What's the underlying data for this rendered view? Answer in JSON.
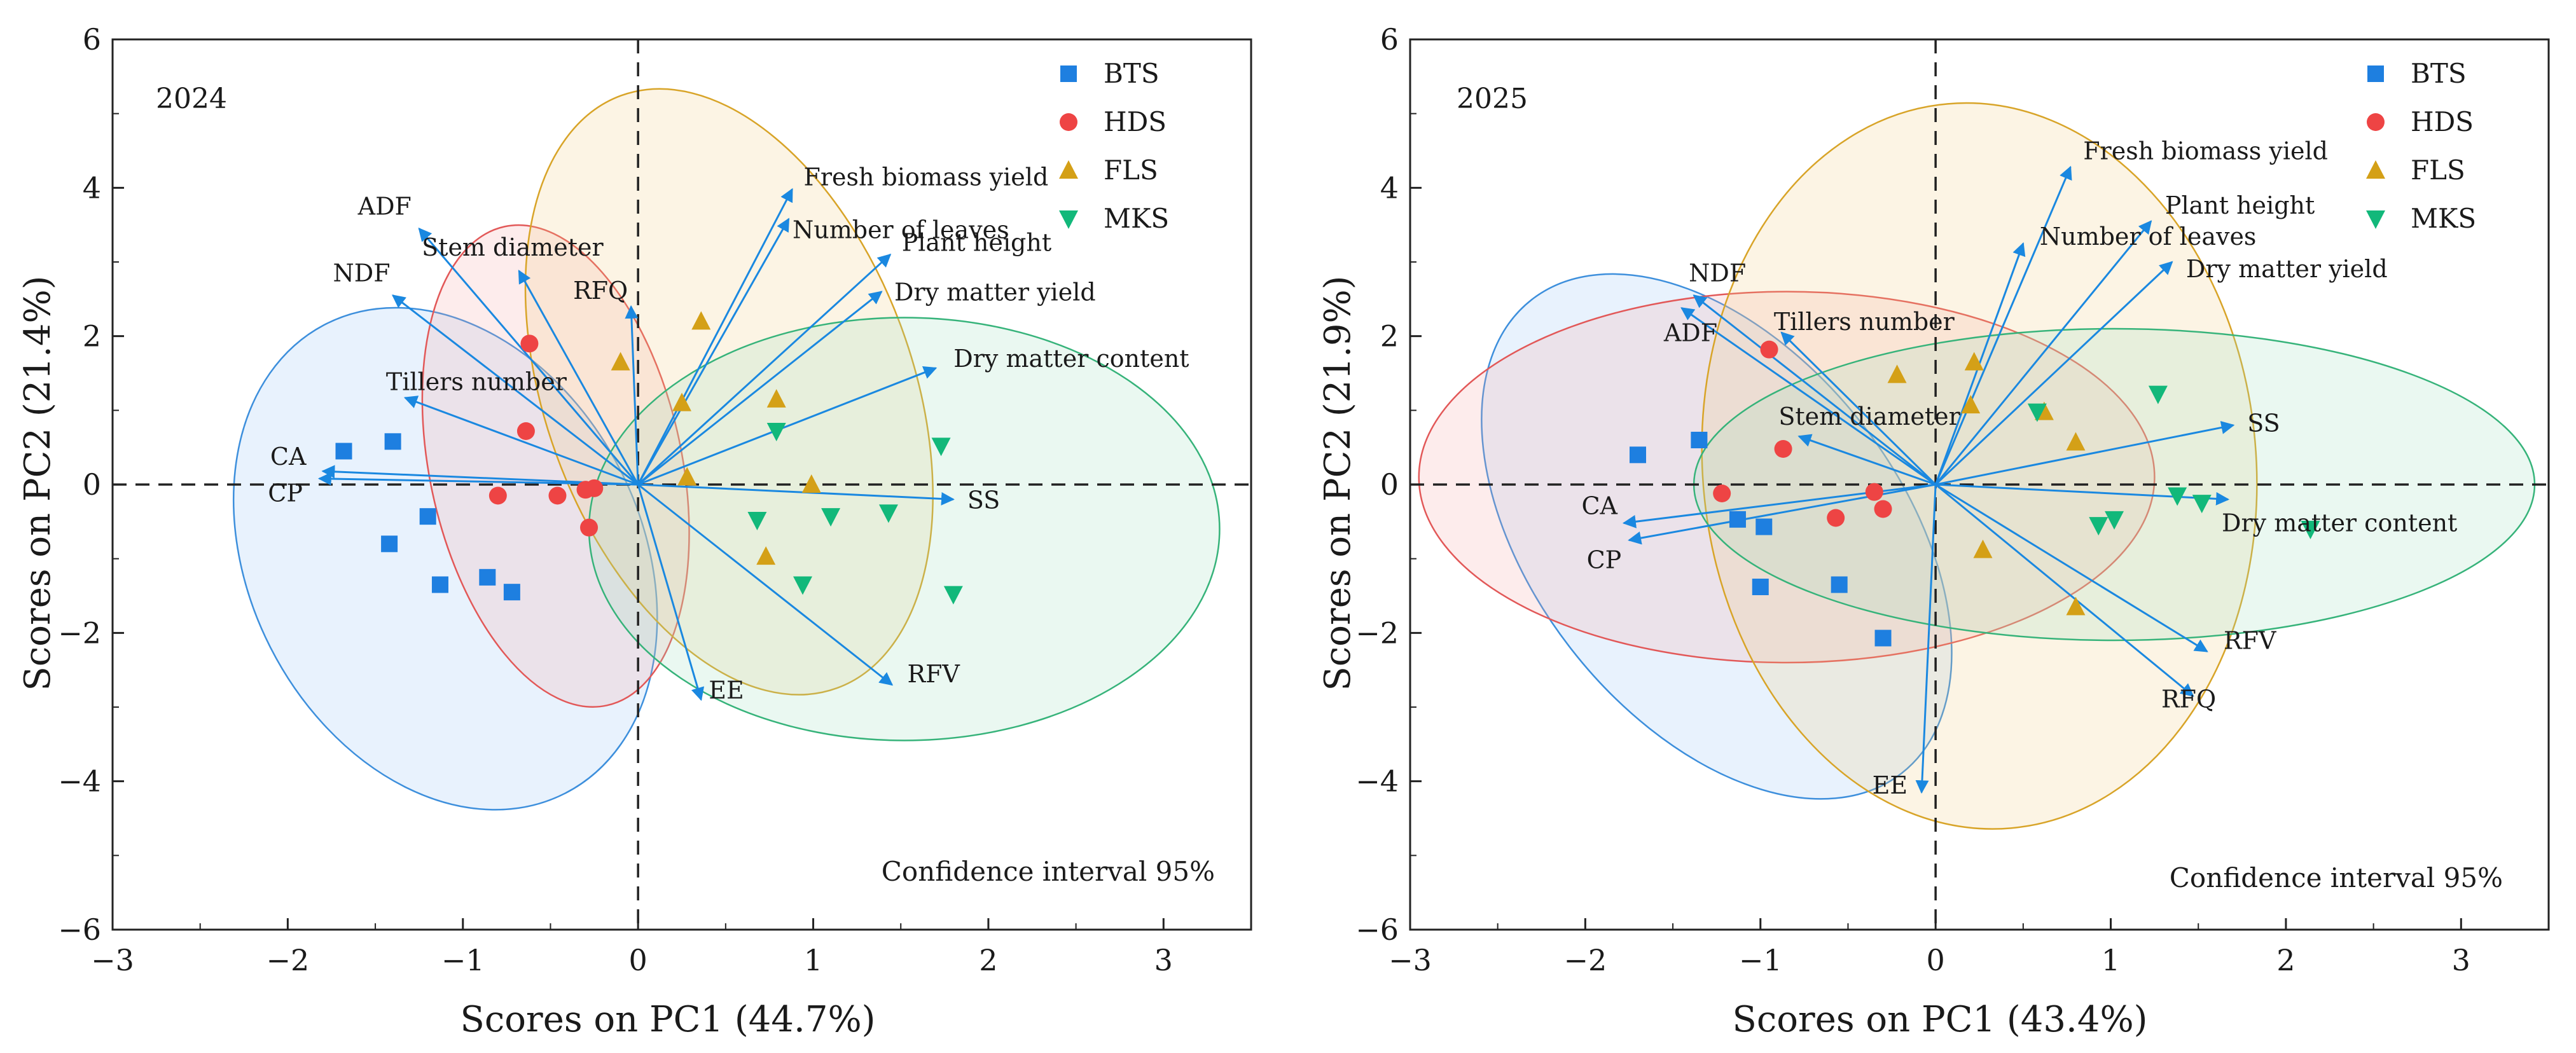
{
  "chart_data": [
    {
      "type": "scatter",
      "subtype": "pca-biplot",
      "year_label": "2024",
      "xlabel": "Scores on PC1 (44.7%)",
      "ylabel": "Scores on PC2 (21.4%)",
      "xlim": [
        -3,
        3.5
      ],
      "ylim": [
        -6,
        6
      ],
      "xticks": [
        "−3",
        "−2",
        "−1",
        "0",
        "1",
        "2",
        "3"
      ],
      "yticks": [
        "−6",
        "−4",
        "−2",
        "0",
        "2",
        "4",
        "6"
      ],
      "annotation": "Confidence interval 95%",
      "series": [
        {
          "name": "BTS",
          "marker": "square",
          "color": "#1e7fe0",
          "x": [
            -1.68,
            -1.4,
            -1.42,
            -1.2,
            -1.13,
            -0.86,
            -0.72
          ],
          "y": [
            0.45,
            0.58,
            -0.8,
            -0.43,
            -1.35,
            -1.25,
            -1.45
          ]
        },
        {
          "name": "HDS",
          "marker": "circle",
          "color": "#ee4444",
          "x": [
            -0.62,
            -0.64,
            -0.8,
            -0.46,
            -0.3,
            -0.25,
            -0.28
          ],
          "y": [
            1.9,
            0.72,
            -0.15,
            -0.15,
            -0.07,
            -0.05,
            -0.58
          ]
        },
        {
          "name": "FLS",
          "marker": "triangle",
          "color": "#d4a017",
          "x": [
            -0.1,
            0.36,
            0.25,
            0.79,
            0.28,
            0.99,
            0.73
          ],
          "y": [
            1.65,
            2.2,
            1.1,
            1.15,
            0.1,
            0.0,
            -0.97
          ]
        },
        {
          "name": "MKS",
          "marker": "triangle-down",
          "color": "#12b87a",
          "x": [
            0.79,
            1.73,
            0.68,
            1.1,
            1.43,
            0.94,
            1.8
          ],
          "y": [
            0.72,
            0.52,
            -0.48,
            -0.43,
            -0.38,
            -1.35,
            -1.48
          ]
        }
      ],
      "ellipses": [
        {
          "group": "BTS",
          "cx": -1.1,
          "cy": -1.0,
          "rx": 1.12,
          "ry": 3.55,
          "angle_deg": 27
        },
        {
          "group": "HDS",
          "cx": -0.47,
          "cy": 0.25,
          "rx": 0.72,
          "ry": 3.3,
          "angle_deg": 12
        },
        {
          "group": "FLS",
          "cx": 0.52,
          "cy": 1.25,
          "rx": 1.05,
          "ry": 4.25,
          "angle_deg": 20
        },
        {
          "group": "MKS",
          "cx": 1.52,
          "cy": -0.6,
          "rx": 1.8,
          "ry": 2.85,
          "angle_deg": 0
        }
      ],
      "loadings": [
        {
          "name": "ADF",
          "x": -1.25,
          "y": 3.45
        },
        {
          "name": "NDF",
          "x": -1.4,
          "y": 2.55
        },
        {
          "name": "Stem diameter",
          "x": -0.68,
          "y": 2.88
        },
        {
          "name": "RFQ",
          "x": -0.04,
          "y": 2.4
        },
        {
          "name": "Fresh biomass yield",
          "x": 0.88,
          "y": 3.98
        },
        {
          "name": "Number of leaves",
          "x": 0.86,
          "y": 3.58
        },
        {
          "name": "Plant height",
          "x": 1.44,
          "y": 3.1
        },
        {
          "name": "Dry matter yield",
          "x": 1.39,
          "y": 2.6
        },
        {
          "name": "Dry matter content",
          "x": 1.7,
          "y": 1.57
        },
        {
          "name": "Tillers number",
          "x": -1.33,
          "y": 1.17
        },
        {
          "name": "CA",
          "x": -1.8,
          "y": 0.18
        },
        {
          "name": "CP",
          "x": -1.82,
          "y": 0.08
        },
        {
          "name": "SS",
          "x": 1.8,
          "y": -0.2
        },
        {
          "name": "RFV",
          "x": 1.45,
          "y": -2.7
        },
        {
          "name": "EE",
          "x": 0.36,
          "y": -2.9
        }
      ],
      "legend": [
        "BTS",
        "HDS",
        "FLS",
        "MKS"
      ],
      "legend_position": "top-right"
    },
    {
      "type": "scatter",
      "subtype": "pca-biplot",
      "year_label": "2025",
      "xlabel": "Scores on PC1 (43.4%)",
      "ylabel": "Scores on PC2 (21.9%)",
      "xlim": [
        -3,
        3.5
      ],
      "ylim": [
        -6,
        6
      ],
      "xticks": [
        "−3",
        "−2",
        "−1",
        "0",
        "1",
        "2",
        "3"
      ],
      "yticks": [
        "−6",
        "−4",
        "−2",
        "0",
        "2",
        "4",
        "6"
      ],
      "annotation": "Confidence interval 95%",
      "series": [
        {
          "name": "BTS",
          "marker": "square",
          "color": "#1e7fe0",
          "x": [
            -1.7,
            -1.35,
            -1.13,
            -0.98,
            -1.0,
            -0.55,
            -0.3
          ],
          "y": [
            0.4,
            0.6,
            -0.47,
            -0.57,
            -1.38,
            -1.35,
            -2.07
          ]
        },
        {
          "name": "HDS",
          "marker": "circle",
          "color": "#ee4444",
          "x": [
            -0.95,
            -0.87,
            -1.22,
            -0.57,
            -0.35,
            -0.3
          ],
          "y": [
            1.82,
            0.48,
            -0.12,
            -0.45,
            -0.1,
            -0.33
          ]
        },
        {
          "name": "FLS",
          "marker": "triangle",
          "color": "#d4a017",
          "x": [
            -0.22,
            0.22,
            0.2,
            0.62,
            0.8,
            0.27,
            0.8
          ],
          "y": [
            1.48,
            1.65,
            1.07,
            0.98,
            0.57,
            -0.88,
            -1.65
          ]
        },
        {
          "name": "MKS",
          "marker": "triangle-down",
          "color": "#12b87a",
          "x": [
            1.27,
            0.58,
            1.38,
            1.52,
            0.93,
            1.02,
            2.14
          ],
          "y": [
            1.22,
            0.98,
            -0.15,
            -0.25,
            -0.55,
            -0.47,
            -0.6
          ]
        }
      ],
      "ellipses": [
        {
          "group": "BTS",
          "cx": -1.25,
          "cy": -0.7,
          "rx": 1.05,
          "ry": 4.05,
          "angle_deg": 38
        },
        {
          "group": "HDS",
          "cx": -0.85,
          "cy": 0.1,
          "rx": 2.1,
          "ry": 2.5,
          "angle_deg": 0
        },
        {
          "group": "FLS",
          "cx": 0.25,
          "cy": 0.25,
          "rx": 1.58,
          "ry": 4.9,
          "angle_deg": 5
        },
        {
          "group": "MKS",
          "cx": 1.02,
          "cy": 0.0,
          "rx": 2.4,
          "ry": 2.1,
          "angle_deg": 0
        }
      ],
      "loadings": [
        {
          "name": "Fresh biomass yield",
          "x": 0.77,
          "y": 4.28
        },
        {
          "name": "Plant height",
          "x": 1.23,
          "y": 3.55
        },
        {
          "name": "Number of leaves",
          "x": 0.5,
          "y": 3.25
        },
        {
          "name": "Dry matter yield",
          "x": 1.35,
          "y": 3.0
        },
        {
          "name": "NDF",
          "x": -1.38,
          "y": 2.55
        },
        {
          "name": "Tillers number",
          "x": -0.88,
          "y": 2.05
        },
        {
          "name": "ADF",
          "x": -1.45,
          "y": 2.38
        },
        {
          "name": "Stem diameter",
          "x": -0.78,
          "y": 0.65
        },
        {
          "name": "SS",
          "x": 1.7,
          "y": 0.8
        },
        {
          "name": "CA",
          "x": -1.78,
          "y": -0.52
        },
        {
          "name": "CP",
          "x": -1.75,
          "y": -0.75
        },
        {
          "name": "Dry matter content",
          "x": 1.67,
          "y": -0.2
        },
        {
          "name": "RFV",
          "x": 1.55,
          "y": -2.25
        },
        {
          "name": "RFQ",
          "x": 1.47,
          "y": -2.85
        },
        {
          "name": "EE",
          "x": -0.08,
          "y": -4.15
        }
      ],
      "legend": [
        "BTS",
        "HDS",
        "FLS",
        "MKS"
      ],
      "legend_position": "top-right"
    }
  ]
}
